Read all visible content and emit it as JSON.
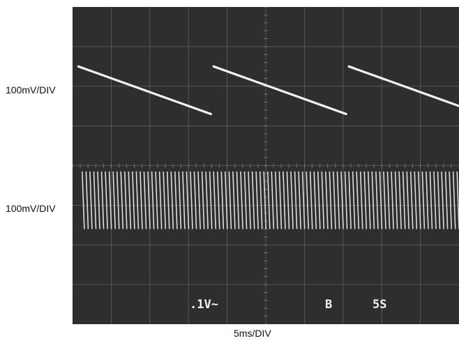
{
  "labels": {
    "channel1_scale": "100mV/DIV",
    "channel2_scale": "100mV/DIV",
    "timebase": "5ms/DIV"
  },
  "screen_readout": {
    "volts": ".1V~",
    "marker": "B",
    "time": "5S"
  },
  "colors": {
    "screen": "#2e2e2e",
    "grid": "#8a8a8a",
    "trace": "#f2f2f2",
    "label_text": "#111111"
  },
  "chart_data": {
    "type": "line",
    "title": "",
    "xlabel": "5ms/DIV",
    "grid": true,
    "x_divisions": 10,
    "y_divisions": 8,
    "series": [
      {
        "name": "",
        "scale": "100mV/DIV",
        "shape": "sawtooth",
        "period_div": 3.5,
        "ramp_div": 3.43,
        "ramp_top_div": 6.5,
        "ramp_bottom_div": 5.3,
        "x_start_div": 0.15
      },
      {
        "name": "",
        "scale": "100mV/DIV",
        "shape": "sawtooth",
        "period_div": 0.1,
        "ramp_top_div": 3.85,
        "ramp_bottom_div": 2.4,
        "x_start_div": 0.25
      }
    ]
  }
}
